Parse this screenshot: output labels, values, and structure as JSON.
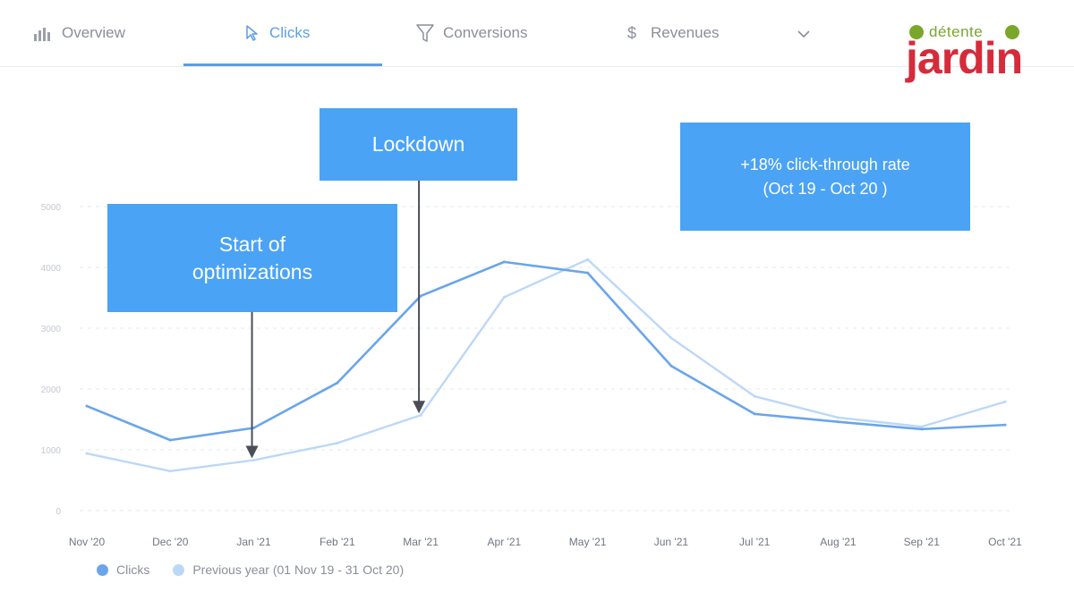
{
  "tabs": [
    {
      "label": "Overview",
      "icon": "bar-chart-icon",
      "active": false
    },
    {
      "label": "Clicks",
      "icon": "cursor-icon",
      "active": true
    },
    {
      "label": "Conversions",
      "icon": "funnel-icon",
      "active": false
    },
    {
      "label": "Revenues",
      "icon": "dollar-icon",
      "active": false
    }
  ],
  "logo": {
    "top": "détente",
    "main": "jardin"
  },
  "callouts": {
    "optimizations": "Start of\noptimizations",
    "lockdown": "Lockdown",
    "ctr": "+18% click-through rate\n(Oct 19 - Oct 20 )"
  },
  "colors": {
    "accent": "#5b9ee6",
    "clicks": "#6aa5ea",
    "previous": "#bcd8f7",
    "callout": "#4aa3f5",
    "logo_red": "#d52b3a",
    "logo_green": "#7aa62a"
  },
  "legend": [
    {
      "label": "Clicks",
      "color": "#6aa5ea"
    },
    {
      "label": "Previous year (01 Nov 19 - 31 Oct 20)",
      "color": "#bcd8f7"
    }
  ],
  "chart_data": {
    "type": "line",
    "categories": [
      "Nov '20",
      "Dec '20",
      "Jan '21",
      "Feb '21",
      "Mar '21",
      "Apr '21",
      "May '21",
      "Jun '21",
      "Jul '21",
      "Aug '21",
      "Sep '21",
      "Oct '21"
    ],
    "y_ticks": [
      "0",
      "1000",
      "2000",
      "3000",
      "4000",
      "5000"
    ],
    "ylim": [
      0,
      5000
    ],
    "series": [
      {
        "name": "Clicks",
        "values": [
          1720,
          1160,
          1360,
          2100,
          3530,
          4090,
          3910,
          2380,
          1590,
          1460,
          1340,
          1410
        ]
      },
      {
        "name": "Previous year (01 Nov 19 - 31 Oct 20)",
        "values": [
          940,
          650,
          830,
          1110,
          1570,
          3510,
          4130,
          2840,
          1880,
          1530,
          1380,
          1790
        ]
      }
    ],
    "annotations": [
      {
        "text": "Start of optimizations",
        "category": "Jan '21"
      },
      {
        "text": "Lockdown",
        "category": "Mar '21"
      },
      {
        "text": "+18% click-through rate (Oct 19 - Oct 20 )"
      }
    ],
    "grid": true,
    "legend_position": "bottom-left"
  }
}
